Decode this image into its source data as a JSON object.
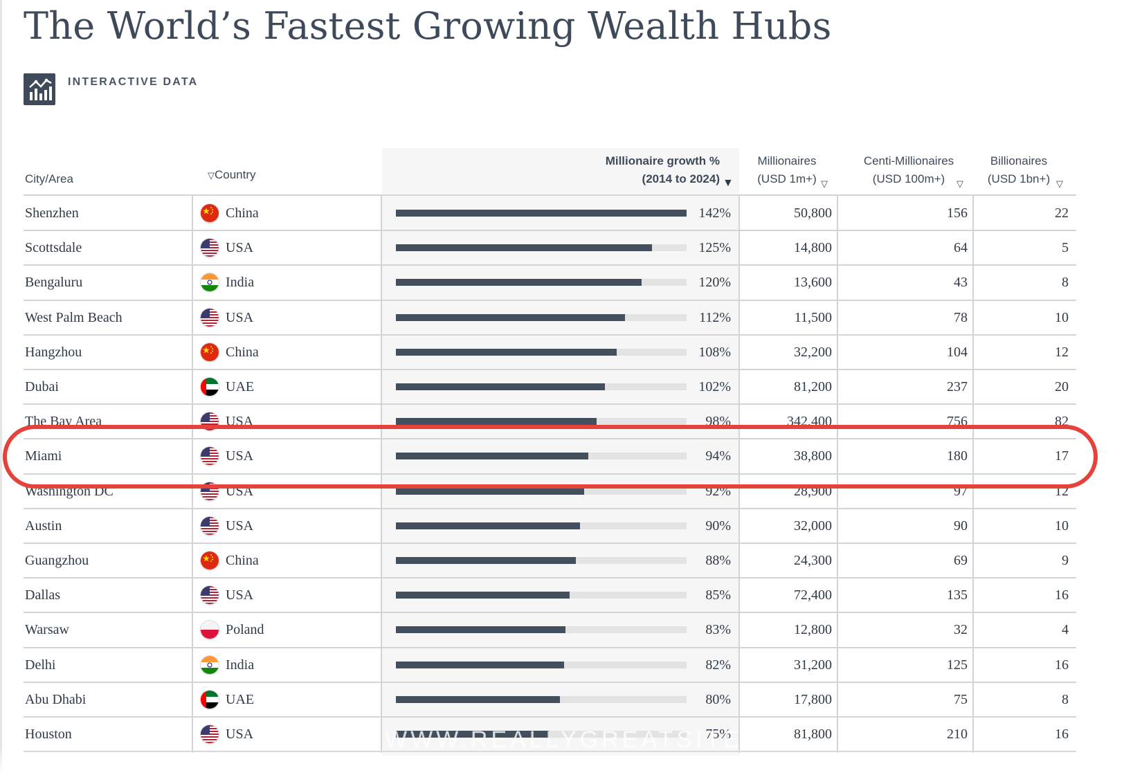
{
  "title": "The World’s Fastest Growing Wealth Hubs",
  "badge": {
    "icon": "chart-icon",
    "label": "INTERACTIVE DATA"
  },
  "headers": {
    "city": "City/Area",
    "country": "Country",
    "growth_line1": "Millionaire growth %",
    "growth_line2": "(2014 to 2024)",
    "millionaires_line1": "Millionaires",
    "millionaires_line2": "(USD 1m+)",
    "centi_line1": "Centi-Millionaires",
    "centi_line2": "(USD 100m+)",
    "billionaires_line1": "Billionaires",
    "billionaires_line2": "(USD 1bn+)"
  },
  "colors": {
    "bar": "#444f5d",
    "track": "#e3e3e3",
    "highlight": "#e4423b",
    "text": "#2f3a48"
  },
  "highlighted_city": "Miami",
  "watermark": "WWW.REALLYGREATSITE.COM",
  "chart_data": {
    "type": "table",
    "title": "The World’s Fastest Growing Wealth Hubs",
    "sorted_by": "Millionaire growth % (2014 to 2024)",
    "growth_range": [
      0,
      142
    ],
    "rows": [
      {
        "city": "Shenzhen",
        "country": "China",
        "flag": "china",
        "growth_pct": 142,
        "growth": "142%",
        "millionaires": "50,800",
        "centi_millionaires": "156",
        "billionaires": "22"
      },
      {
        "city": "Scottsdale",
        "country": "USA",
        "flag": "usa",
        "growth_pct": 125,
        "growth": "125%",
        "millionaires": "14,800",
        "centi_millionaires": "64",
        "billionaires": "5"
      },
      {
        "city": "Bengaluru",
        "country": "India",
        "flag": "india",
        "growth_pct": 120,
        "growth": "120%",
        "millionaires": "13,600",
        "centi_millionaires": "43",
        "billionaires": "8"
      },
      {
        "city": "West Palm Beach",
        "country": "USA",
        "flag": "usa",
        "growth_pct": 112,
        "growth": "112%",
        "millionaires": "11,500",
        "centi_millionaires": "78",
        "billionaires": "10"
      },
      {
        "city": "Hangzhou",
        "country": "China",
        "flag": "china",
        "growth_pct": 108,
        "growth": "108%",
        "millionaires": "32,200",
        "centi_millionaires": "104",
        "billionaires": "12"
      },
      {
        "city": "Dubai",
        "country": "UAE",
        "flag": "uae",
        "growth_pct": 102,
        "growth": "102%",
        "millionaires": "81,200",
        "centi_millionaires": "237",
        "billionaires": "20"
      },
      {
        "city": "The Bay Area",
        "country": "USA",
        "flag": "usa",
        "growth_pct": 98,
        "growth": "98%",
        "millionaires": "342,400",
        "centi_millionaires": "756",
        "billionaires": "82"
      },
      {
        "city": "Miami",
        "country": "USA",
        "flag": "usa",
        "growth_pct": 94,
        "growth": "94%",
        "millionaires": "38,800",
        "centi_millionaires": "180",
        "billionaires": "17"
      },
      {
        "city": "Washington DC",
        "country": "USA",
        "flag": "usa",
        "growth_pct": 92,
        "growth": "92%",
        "millionaires": "28,900",
        "centi_millionaires": "97",
        "billionaires": "12"
      },
      {
        "city": "Austin",
        "country": "USA",
        "flag": "usa",
        "growth_pct": 90,
        "growth": "90%",
        "millionaires": "32,000",
        "centi_millionaires": "90",
        "billionaires": "10"
      },
      {
        "city": "Guangzhou",
        "country": "China",
        "flag": "china",
        "growth_pct": 88,
        "growth": "88%",
        "millionaires": "24,300",
        "centi_millionaires": "69",
        "billionaires": "9"
      },
      {
        "city": "Dallas",
        "country": "USA",
        "flag": "usa",
        "growth_pct": 85,
        "growth": "85%",
        "millionaires": "72,400",
        "centi_millionaires": "135",
        "billionaires": "16"
      },
      {
        "city": "Warsaw",
        "country": "Poland",
        "flag": "poland",
        "growth_pct": 83,
        "growth": "83%",
        "millionaires": "12,800",
        "centi_millionaires": "32",
        "billionaires": "4"
      },
      {
        "city": "Delhi",
        "country": "India",
        "flag": "india",
        "growth_pct": 82,
        "growth": "82%",
        "millionaires": "31,200",
        "centi_millionaires": "125",
        "billionaires": "16"
      },
      {
        "city": "Abu Dhabi",
        "country": "UAE",
        "flag": "uae",
        "growth_pct": 80,
        "growth": "80%",
        "millionaires": "17,800",
        "centi_millionaires": "75",
        "billionaires": "8"
      },
      {
        "city": "Houston",
        "country": "USA",
        "flag": "usa",
        "growth_pct": 75,
        "growth": "75%",
        "millionaires": "81,800",
        "centi_millionaires": "210",
        "billionaires": "16"
      }
    ]
  }
}
